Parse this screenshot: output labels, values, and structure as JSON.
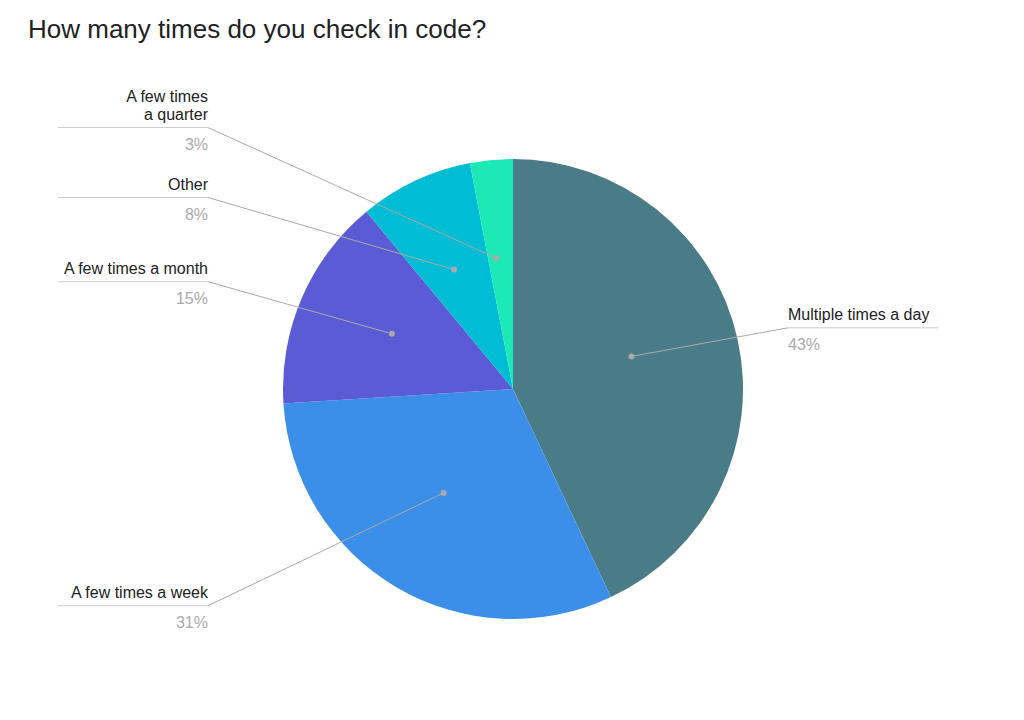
{
  "chart_data": {
    "type": "pie",
    "title": "How many times do you check in code?",
    "categories": [
      "Multiple times a day",
      "A few times a week",
      "A few times a month",
      "Other",
      "A few times\na quarter"
    ],
    "values": [
      43,
      31,
      15,
      8,
      3
    ],
    "value_labels": [
      "43%",
      "31%",
      "15%",
      "8%",
      "3%"
    ],
    "colors": [
      "#4a7c87",
      "#3b8fe8",
      "#5b5bd6",
      "#00bcd4",
      "#1de9b6"
    ],
    "data_labels": true
  }
}
